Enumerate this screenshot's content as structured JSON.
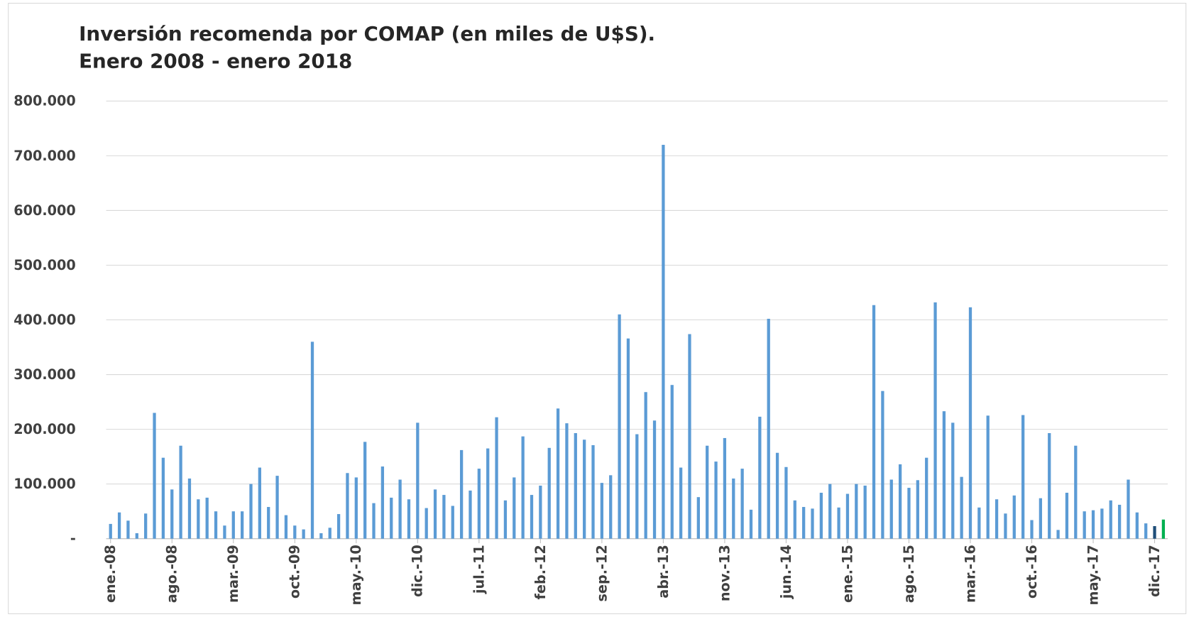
{
  "chart_data": {
    "type": "bar",
    "title": "Inversión recomenda por COMAP (en miles de U$S).",
    "subtitle": "Enero 2008 - enero 2018",
    "categories": [
      "ene.-08",
      null,
      null,
      null,
      null,
      null,
      null,
      "ago.-08",
      null,
      null,
      null,
      null,
      null,
      null,
      "mar.-09",
      null,
      null,
      null,
      null,
      null,
      null,
      "oct.-09",
      null,
      null,
      null,
      null,
      null,
      null,
      "may.-10",
      null,
      null,
      null,
      null,
      null,
      null,
      "dic.-10",
      null,
      null,
      null,
      null,
      null,
      null,
      "jul.-11",
      null,
      null,
      null,
      null,
      null,
      null,
      "feb.-12",
      null,
      null,
      null,
      null,
      null,
      null,
      "sep.-12",
      null,
      null,
      null,
      null,
      null,
      null,
      "abr.-13",
      null,
      null,
      null,
      null,
      null,
      null,
      "nov.-13",
      null,
      null,
      null,
      null,
      null,
      null,
      "jun.-14",
      null,
      null,
      null,
      null,
      null,
      null,
      "ene.-15",
      null,
      null,
      null,
      null,
      null,
      null,
      "ago.-15",
      null,
      null,
      null,
      null,
      null,
      null,
      "mar.-16",
      null,
      null,
      null,
      null,
      null,
      null,
      "oct.-16",
      null,
      null,
      null,
      null,
      null,
      null,
      "may.-17",
      null,
      null,
      null,
      null,
      null,
      null,
      "dic.-17",
      null
    ],
    "values": [
      27000,
      48000,
      33000,
      10000,
      46000,
      230000,
      148000,
      90000,
      170000,
      110000,
      72000,
      75000,
      50000,
      24000,
      50000,
      50000,
      100000,
      130000,
      58000,
      115000,
      43000,
      24000,
      17000,
      360000,
      10000,
      20000,
      45000,
      120000,
      112000,
      177000,
      65000,
      132000,
      75000,
      108000,
      72000,
      212000,
      56000,
      90000,
      80000,
      60000,
      162000,
      88000,
      128000,
      165000,
      222000,
      70000,
      112000,
      187000,
      80000,
      97000,
      166000,
      238000,
      211000,
      193000,
      181000,
      171000,
      102000,
      116000,
      410000,
      366000,
      191000,
      268000,
      216000,
      720000,
      281000,
      130000,
      374000,
      76000,
      170000,
      141000,
      184000,
      110000,
      128000,
      53000,
      223000,
      402000,
      157000,
      131000,
      70000,
      58000,
      55000,
      84000,
      100000,
      57000,
      82000,
      100000,
      97000,
      427000,
      270000,
      108000,
      136000,
      93000,
      107000,
      148000,
      432000,
      233000,
      212000,
      113000,
      423000,
      57000,
      225000,
      72000,
      46000,
      79000,
      226000,
      34000,
      74000,
      193000,
      16000,
      84000,
      170000,
      50000,
      52000,
      55000,
      70000,
      62000,
      108000,
      48000,
      28000,
      23000,
      35000
    ],
    "color": "#5b9bd5",
    "point_colors": {
      "119": "#1f4e79",
      "120": "#00b050"
    },
    "ylim": [
      0,
      800000
    ],
    "yticks": [
      {
        "value": 0,
        "label": "-"
      },
      {
        "value": 100000,
        "label": "100.000"
      },
      {
        "value": 200000,
        "label": "200.000"
      },
      {
        "value": 300000,
        "label": "300.000"
      },
      {
        "value": 400000,
        "label": "400.000"
      },
      {
        "value": 500000,
        "label": "500.000"
      },
      {
        "value": 600000,
        "label": "600.000"
      },
      {
        "value": 700000,
        "label": "700.000"
      },
      {
        "value": 800000,
        "label": "800.000"
      }
    ],
    "grid": true
  }
}
